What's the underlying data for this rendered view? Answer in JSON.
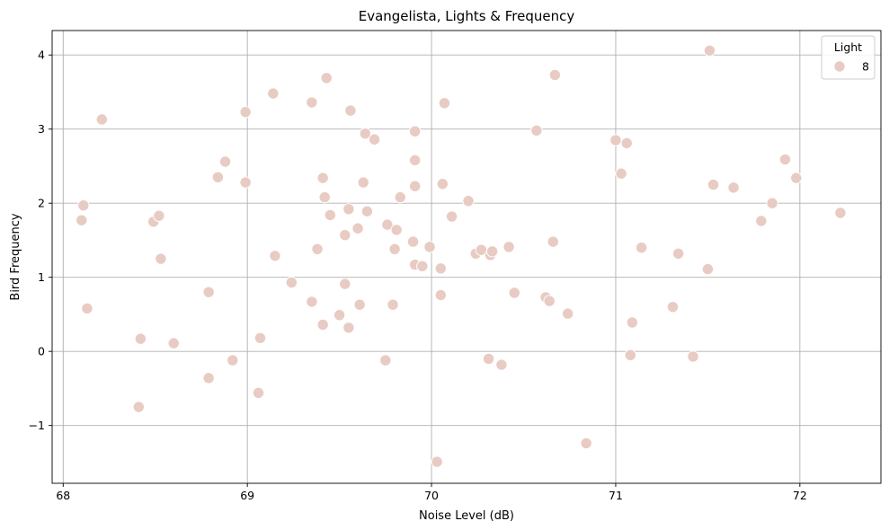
{
  "chart_data": {
    "type": "scatter",
    "title": "Evangelista, Lights & Frequency",
    "xlabel": "Noise Level (dB)",
    "ylabel": "Bird Frequency",
    "xlim": [
      67.94,
      72.44
    ],
    "ylim": [
      -1.78,
      4.33
    ],
    "xticks": [
      68,
      69,
      70,
      71,
      72
    ],
    "yticks": [
      -1,
      0,
      1,
      2,
      3,
      4
    ],
    "xtick_labels": [
      "68",
      "69",
      "70",
      "71",
      "72"
    ],
    "ytick_labels": [
      "−1",
      "0",
      "1",
      "2",
      "3",
      "4"
    ],
    "grid": true,
    "legend": {
      "title": "Light",
      "placement": "top-right",
      "entries": [
        {
          "label": "8",
          "color": "#e8cbc2"
        }
      ]
    },
    "marker_color": "#e8cbc2",
    "marker_edge_color": "#ffffff",
    "series": [
      {
        "name": "8",
        "points": [
          [
            68.1,
            1.77
          ],
          [
            68.11,
            1.97
          ],
          [
            68.13,
            0.58
          ],
          [
            68.21,
            3.13
          ],
          [
            68.41,
            -0.75
          ],
          [
            68.42,
            0.17
          ],
          [
            68.49,
            1.75
          ],
          [
            68.52,
            1.83
          ],
          [
            68.53,
            1.25
          ],
          [
            68.6,
            0.11
          ],
          [
            68.79,
            -0.36
          ],
          [
            68.79,
            0.8
          ],
          [
            68.84,
            2.35
          ],
          [
            68.88,
            2.56
          ],
          [
            68.92,
            -0.12
          ],
          [
            68.99,
            3.23
          ],
          [
            68.99,
            2.28
          ],
          [
            69.06,
            -0.56
          ],
          [
            69.07,
            0.18
          ],
          [
            69.14,
            3.48
          ],
          [
            69.15,
            1.29
          ],
          [
            69.24,
            0.93
          ],
          [
            69.35,
            3.36
          ],
          [
            69.35,
            0.67
          ],
          [
            69.38,
            1.38
          ],
          [
            69.41,
            0.36
          ],
          [
            69.41,
            2.34
          ],
          [
            69.42,
            2.08
          ],
          [
            69.43,
            3.69
          ],
          [
            69.45,
            1.84
          ],
          [
            69.5,
            0.49
          ],
          [
            69.53,
            0.91
          ],
          [
            69.53,
            1.57
          ],
          [
            69.55,
            0.32
          ],
          [
            69.55,
            1.92
          ],
          [
            69.56,
            3.25
          ],
          [
            69.6,
            1.66
          ],
          [
            69.61,
            0.63
          ],
          [
            69.63,
            2.28
          ],
          [
            69.64,
            2.94
          ],
          [
            69.65,
            1.89
          ],
          [
            69.69,
            2.86
          ],
          [
            69.75,
            -0.12
          ],
          [
            69.76,
            1.71
          ],
          [
            69.79,
            0.63
          ],
          [
            69.8,
            1.38
          ],
          [
            69.81,
            1.64
          ],
          [
            69.83,
            2.08
          ],
          [
            69.9,
            1.48
          ],
          [
            69.91,
            2.97
          ],
          [
            69.91,
            2.58
          ],
          [
            69.91,
            1.17
          ],
          [
            69.91,
            2.23
          ],
          [
            69.95,
            1.15
          ],
          [
            69.99,
            1.41
          ],
          [
            70.03,
            -1.49
          ],
          [
            70.05,
            1.12
          ],
          [
            70.05,
            0.76
          ],
          [
            70.06,
            2.26
          ],
          [
            70.07,
            3.35
          ],
          [
            70.11,
            1.82
          ],
          [
            70.2,
            2.03
          ],
          [
            70.24,
            1.32
          ],
          [
            70.27,
            1.37
          ],
          [
            70.31,
            -0.1
          ],
          [
            70.32,
            1.3
          ],
          [
            70.33,
            1.35
          ],
          [
            70.38,
            -0.18
          ],
          [
            70.42,
            1.41
          ],
          [
            70.45,
            0.79
          ],
          [
            70.57,
            2.98
          ],
          [
            70.62,
            0.73
          ],
          [
            70.64,
            0.68
          ],
          [
            70.66,
            1.48
          ],
          [
            70.67,
            3.73
          ],
          [
            70.74,
            0.51
          ],
          [
            70.84,
            -1.24
          ],
          [
            71.0,
            2.85
          ],
          [
            71.03,
            2.4
          ],
          [
            71.06,
            2.81
          ],
          [
            71.08,
            -0.05
          ],
          [
            71.09,
            0.39
          ],
          [
            71.14,
            1.4
          ],
          [
            71.31,
            0.6
          ],
          [
            71.34,
            1.32
          ],
          [
            71.42,
            -0.07
          ],
          [
            71.5,
            1.11
          ],
          [
            71.51,
            4.06
          ],
          [
            71.53,
            2.25
          ],
          [
            71.64,
            2.21
          ],
          [
            71.79,
            1.76
          ],
          [
            71.85,
            2.0
          ],
          [
            71.92,
            2.59
          ],
          [
            71.98,
            2.34
          ],
          [
            72.22,
            1.87
          ]
        ]
      }
    ]
  }
}
